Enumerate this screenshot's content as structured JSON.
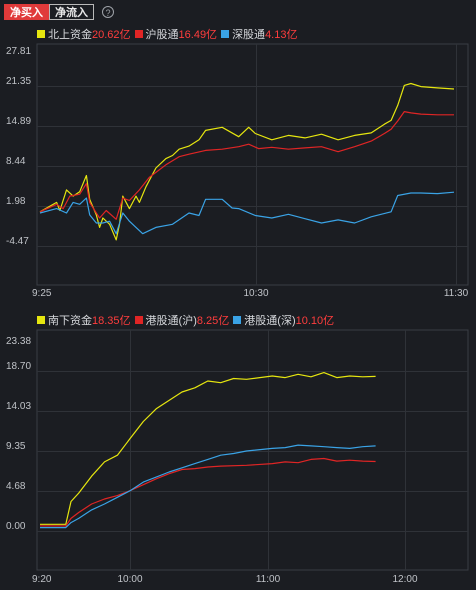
{
  "tabs": {
    "net_buy": "净买入",
    "net_inflow": "净流入",
    "help_icon": "?"
  },
  "colors": {
    "yellow": "#e6e60f",
    "red": "#e02525",
    "blue": "#3aa3e6",
    "value_red": "#ff3d3d",
    "grid": "#2f3238",
    "background": "#1b1d22"
  },
  "chart_data": [
    {
      "type": "line",
      "legend": [
        {
          "name": "北上资金",
          "value": "20.62亿",
          "color": "#e6e60f"
        },
        {
          "name": "沪股通",
          "value": "16.49亿",
          "color": "#e02525"
        },
        {
          "name": "深股通",
          "value": "4.13亿",
          "color": "#3aa3e6"
        }
      ],
      "y_ticks": [
        "27.81",
        "21.35",
        "14.89",
        "8.44",
        "1.98",
        "-4.47"
      ],
      "x_ticks": [
        "9:25",
        "10:30",
        "11:30"
      ],
      "ylim": [
        -10.92,
        27.81
      ],
      "x_domain_minutes": [
        0,
        125
      ],
      "series": [
        {
          "name": "北上资金",
          "x": [
            0,
            5,
            6,
            8,
            10,
            12,
            14,
            15,
            17,
            18,
            19,
            21,
            23,
            24,
            25,
            27,
            29,
            30,
            32,
            35,
            38,
            40,
            42,
            45,
            48,
            50,
            55,
            60,
            63,
            65,
            70,
            75,
            80,
            85,
            90,
            95,
            100,
            104,
            106,
            108,
            110,
            112,
            115,
            120,
            125
          ],
          "y": [
            1,
            2.5,
            1.2,
            4.5,
            3.5,
            4.2,
            6.8,
            3,
            0.5,
            -1.5,
            0,
            -1,
            -3.5,
            -1,
            3.5,
            1.5,
            3.5,
            2.5,
            5,
            8,
            9.5,
            10,
            11,
            11.5,
            12.5,
            14,
            14.5,
            13,
            14.5,
            13.5,
            12.5,
            13.2,
            12.8,
            13.4,
            12.5,
            13.2,
            13.6,
            15,
            15.6,
            18,
            21.2,
            21.5,
            21,
            20.8,
            20.62
          ]
        },
        {
          "name": "沪股通",
          "x": [
            0,
            5,
            7,
            9,
            12,
            14,
            15,
            17,
            18,
            20,
            23,
            25,
            27,
            30,
            33,
            38,
            42,
            45,
            50,
            55,
            60,
            63,
            66,
            70,
            75,
            80,
            85,
            90,
            95,
            100,
            104,
            106,
            108,
            110,
            112,
            115,
            120,
            125
          ],
          "y": [
            1,
            2.2,
            1.5,
            3.5,
            3.8,
            5.5,
            2.5,
            0.8,
            0,
            1.2,
            -0.2,
            3.2,
            2.8,
            4.5,
            6.5,
            8.5,
            9.8,
            10.2,
            10.8,
            11,
            11.4,
            11.8,
            11.1,
            11.3,
            11,
            11.2,
            11.4,
            10.6,
            11.4,
            12.3,
            13.5,
            14.2,
            15.5,
            17,
            16.8,
            16.6,
            16.5,
            16.49
          ]
        },
        {
          "name": "深股通",
          "x": [
            0,
            5,
            8,
            10,
            12,
            14,
            15,
            17,
            19,
            21,
            23,
            25,
            27,
            29,
            31,
            35,
            40,
            45,
            48,
            50,
            55,
            58,
            60,
            65,
            70,
            75,
            80,
            85,
            90,
            95,
            100,
            103,
            106,
            108,
            112,
            115,
            120,
            125
          ],
          "y": [
            0.8,
            1.5,
            0.8,
            2.5,
            2.2,
            3.2,
            0.5,
            -0.8,
            -0.8,
            -0.5,
            -2.5,
            0.8,
            -0.5,
            -1.5,
            -2.5,
            -1.5,
            -1,
            0.8,
            0.4,
            3,
            3,
            1.6,
            1.5,
            0.4,
            0,
            0.6,
            -0.1,
            -0.8,
            -0.3,
            -0.8,
            0.2,
            0.6,
            1,
            3.6,
            4,
            4,
            3.9,
            4.13
          ]
        }
      ]
    },
    {
      "type": "line",
      "legend": [
        {
          "name": "南下资金",
          "value": "18.35亿",
          "color": "#e6e60f"
        },
        {
          "name": "港股通(沪)",
          "value": "8.25亿",
          "color": "#e02525"
        },
        {
          "name": "港股通(深)",
          "value": "10.10亿",
          "color": "#3aa3e6"
        }
      ],
      "y_ticks": [
        "23.38",
        "18.70",
        "14.03",
        "9.35",
        "4.68",
        "0.00"
      ],
      "x_ticks": [
        "9:20",
        "10:00",
        "11:00",
        "12:00"
      ],
      "ylim": [
        -4.68,
        23.38
      ],
      "x_domain_minutes": [
        0,
        160
      ],
      "series": [
        {
          "name": "南下资金",
          "x": [
            0,
            10,
            12,
            15,
            20,
            25,
            30,
            35,
            40,
            45,
            50,
            55,
            60,
            65,
            70,
            75,
            80,
            90,
            95,
            100,
            105,
            110,
            115,
            120,
            125,
            130
          ],
          "y": [
            0.8,
            0.8,
            3.5,
            4.5,
            6.5,
            8.2,
            9,
            11,
            13,
            14.5,
            15.5,
            16.5,
            17,
            17.8,
            17.6,
            18.1,
            18,
            18.4,
            18.2,
            18.6,
            18.3,
            18.8,
            18.2,
            18.4,
            18.3,
            18.35
          ]
        },
        {
          "name": "港股通(沪)",
          "x": [
            0,
            10,
            12,
            15,
            20,
            25,
            30,
            35,
            40,
            45,
            50,
            55,
            60,
            65,
            70,
            80,
            90,
            95,
            100,
            105,
            110,
            115,
            120,
            125,
            130
          ],
          "y": [
            0.6,
            0.6,
            1.5,
            2.2,
            3.2,
            3.8,
            4.2,
            4.8,
            5.5,
            6.2,
            6.8,
            7.3,
            7.4,
            7.6,
            7.7,
            7.8,
            8,
            8.2,
            8.1,
            8.5,
            8.6,
            8.3,
            8.4,
            8.3,
            8.25
          ]
        },
        {
          "name": "港股通(深)",
          "x": [
            0,
            10,
            12,
            15,
            20,
            25,
            30,
            35,
            40,
            45,
            50,
            55,
            60,
            65,
            70,
            75,
            80,
            90,
            95,
            100,
            105,
            110,
            115,
            120,
            125,
            130
          ],
          "y": [
            0.4,
            0.4,
            1,
            1.5,
            2.5,
            3.2,
            4,
            4.8,
            5.8,
            6.4,
            7,
            7.5,
            8,
            8.5,
            9,
            9.2,
            9.5,
            9.8,
            9.9,
            10.2,
            10.1,
            10,
            9.9,
            9.8,
            10,
            10.1
          ]
        }
      ]
    }
  ]
}
